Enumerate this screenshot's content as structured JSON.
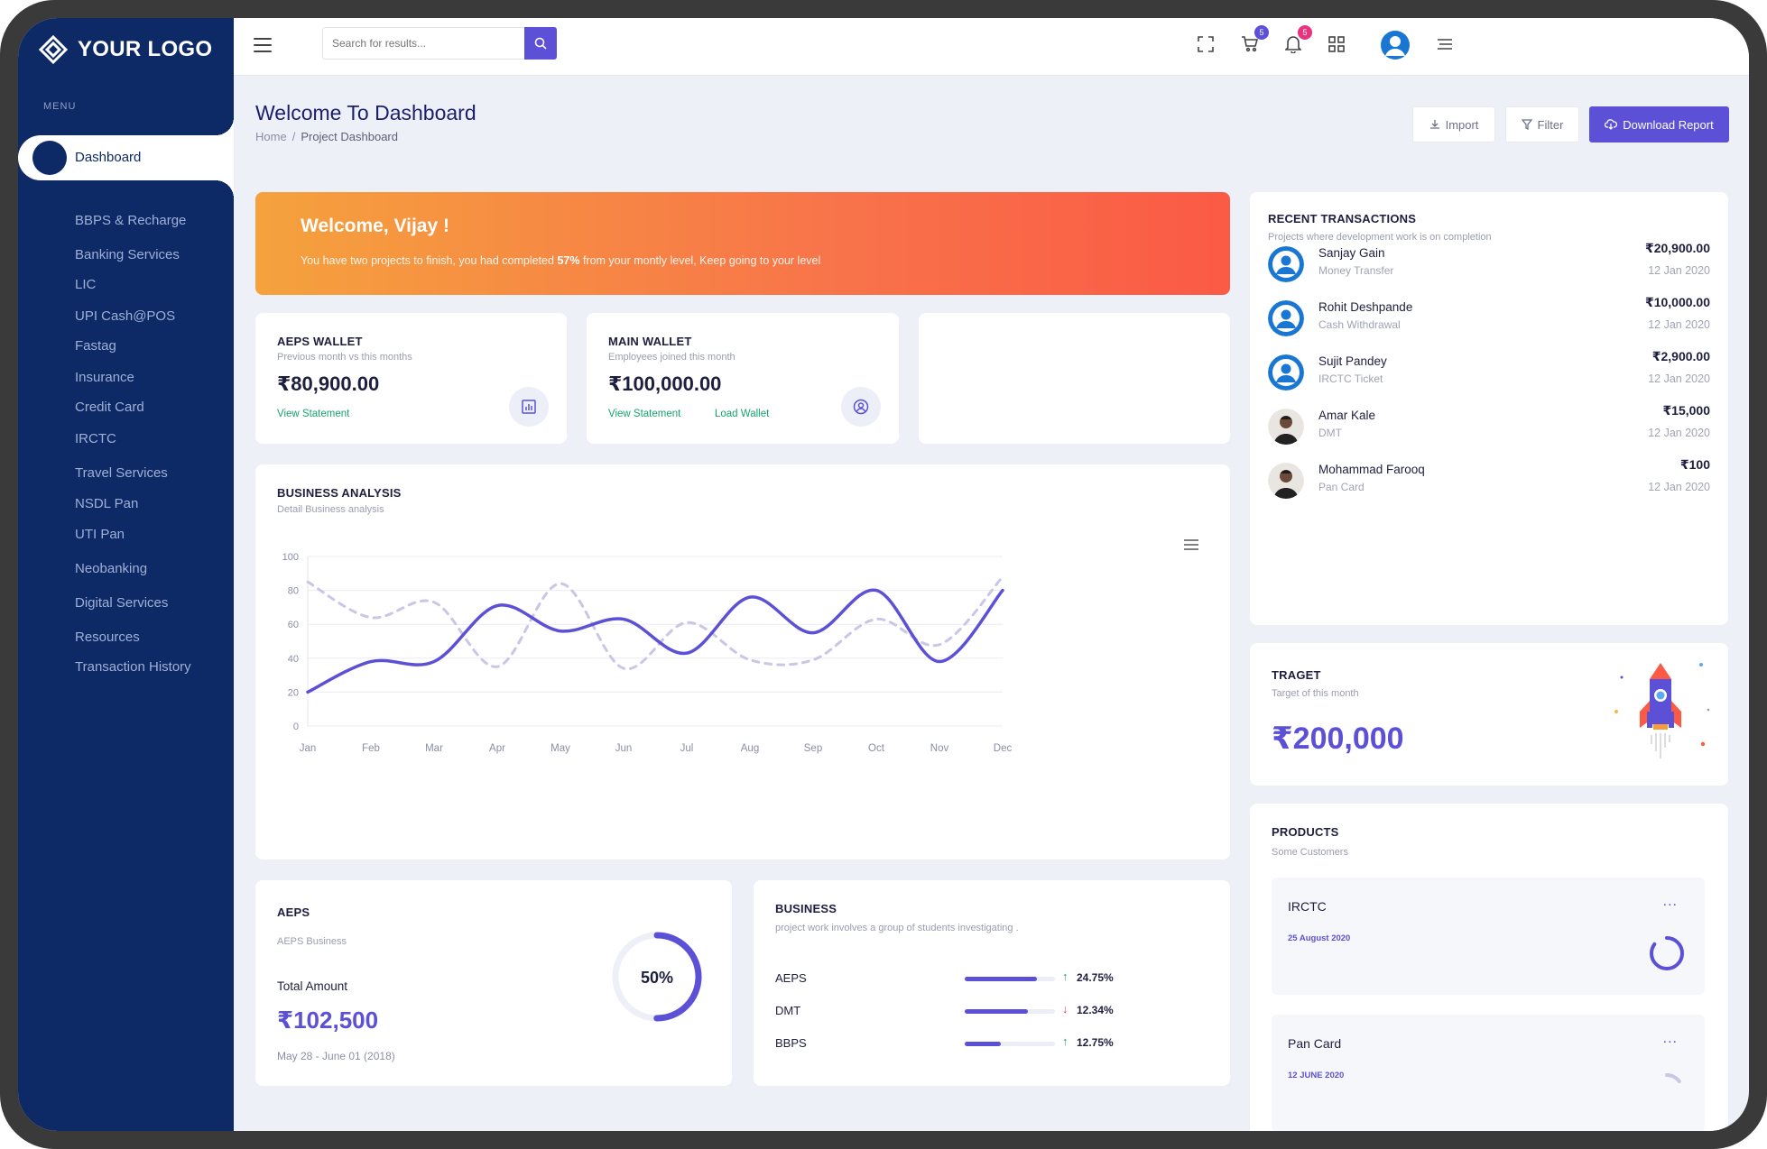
{
  "brand": {
    "logo_text": "YOUR LOGO"
  },
  "sidebar": {
    "menu_caption": "MENU",
    "active_item": "Dashboard",
    "items": [
      "BBPS & Recharge",
      "Banking Services",
      "LIC",
      "UPI Cash@POS",
      "Fastag",
      "Insurance",
      "Credit Card",
      "IRCTC",
      "Travel Services",
      "NSDL Pan",
      "UTI Pan",
      "Neobanking",
      "Digital Services",
      "Resources",
      "Transaction History"
    ]
  },
  "topbar": {
    "search_placeholder": "Search for results...",
    "cart_badge": "5",
    "notification_badge": "5",
    "icons": [
      "menu-icon",
      "search-icon",
      "fullscreen-icon",
      "cart-icon",
      "bell-icon",
      "apps-grid-icon",
      "user-avatar-icon",
      "more-menu-icon"
    ]
  },
  "header": {
    "title": "Welcome To Dashboard",
    "breadcrumb": {
      "home": "Home",
      "separator": "/",
      "current": "Project Dashboard"
    },
    "import_label": "Import",
    "filter_label": "Filter",
    "download_label": "Download Report"
  },
  "banner": {
    "title": "Welcome, Vijay !",
    "text_before": "You have two projects to finish, you had completed ",
    "highlight": "57%",
    "text_after": " from your montly level, Keep going to your level"
  },
  "aeps_wallet": {
    "title": "AEPS WALLET",
    "subtitle": "Previous month vs this months",
    "amount": "₹80,900.00",
    "link": "View Statement"
  },
  "main_wallet": {
    "title": "MAIN WALLET",
    "subtitle": "Employees joined this month",
    "amount": "₹100,000.00",
    "link_statement": "View Statement",
    "link_load": "Load Wallet"
  },
  "business_analysis": {
    "title": "BUSINESS ANALYSIS",
    "subtitle": "Detail Business analysis"
  },
  "chart_data": {
    "type": "line",
    "title": "",
    "xlabel": "",
    "ylabel": "",
    "categories": [
      "Jan",
      "Feb",
      "Mar",
      "Apr",
      "May",
      "Jun",
      "Jul",
      "Aug",
      "Sep",
      "Oct",
      "Nov",
      "Dec"
    ],
    "yticks": [
      0,
      20,
      40,
      60,
      80,
      100
    ],
    "ylim": [
      0,
      100
    ],
    "grid": true,
    "series": [
      {
        "style": "solid",
        "color": "#5b50d6",
        "values": [
          20,
          38,
          38,
          71,
          56,
          63,
          43,
          76,
          55,
          80,
          38,
          80
        ]
      },
      {
        "style": "dashed",
        "color": "#c9c6e6",
        "values": [
          85,
          64,
          73,
          35,
          84,
          34,
          61,
          39,
          39,
          63,
          48,
          88
        ]
      }
    ]
  },
  "aeps_card": {
    "title": "AEPS",
    "subtitle": "AEPS Business",
    "total_label": "Total Amount",
    "amount": "₹102,500",
    "date_range": "May 28 - June 01 (2018)",
    "donut_percent": 50,
    "donut_label": "50%"
  },
  "business_card": {
    "title": "BUSINESS",
    "subtitle": "project work involves a group of students investigating .",
    "rows": [
      {
        "label": "AEPS",
        "progress": 0.8,
        "direction": "up",
        "value": "24.75%"
      },
      {
        "label": "DMT",
        "progress": 0.7,
        "direction": "down",
        "value": "12.34%"
      },
      {
        "label": "BBPS",
        "progress": 0.4,
        "direction": "up",
        "value": "12.75%"
      }
    ]
  },
  "recent_transactions": {
    "title": "RECENT TRANSACTIONS",
    "subtitle": "Projects where development work is on completion",
    "items": [
      {
        "name": "Sanjay Gain",
        "type": "Money Transfer",
        "amount": "₹20,900.00",
        "date": "12 Jan 2020",
        "avatar": "default-user-icon"
      },
      {
        "name": "Rohit Deshpande",
        "type": "Cash Withdrawal",
        "amount": "₹10,000.00",
        "date": "12 Jan 2020",
        "avatar": "default-user-icon"
      },
      {
        "name": "Sujit Pandey",
        "type": "IRCTC Ticket",
        "amount": "₹2,900.00",
        "date": "12 Jan 2020",
        "avatar": "default-user-icon"
      },
      {
        "name": "Amar Kale",
        "type": "DMT",
        "amount": "₹15,000",
        "date": "12 Jan 2020",
        "avatar": "photo"
      },
      {
        "name": "Mohammad Farooq",
        "type": "Pan Card",
        "amount": "₹100",
        "date": "12 Jan 2020",
        "avatar": "photo"
      }
    ]
  },
  "target": {
    "title": "TRAGET",
    "subtitle": "Target of this month",
    "amount": "₹200,000"
  },
  "products": {
    "title": "PRODUCTS",
    "subtitle": "Some Customers",
    "items": [
      {
        "name": "IRCTC",
        "date": "25 August 2020",
        "progress": 0.85,
        "menu": "..."
      },
      {
        "name": "Pan Card",
        "date": "12 JUNE 2020",
        "progress": 0.15,
        "menu": "..."
      }
    ]
  },
  "colors": {
    "sidebar": "#0d2a66",
    "accent": "#5b50d6",
    "positive": "#19a46c",
    "negative": "#e8337f",
    "banner_start": "#f5a23d",
    "banner_end": "#fb5a45"
  }
}
